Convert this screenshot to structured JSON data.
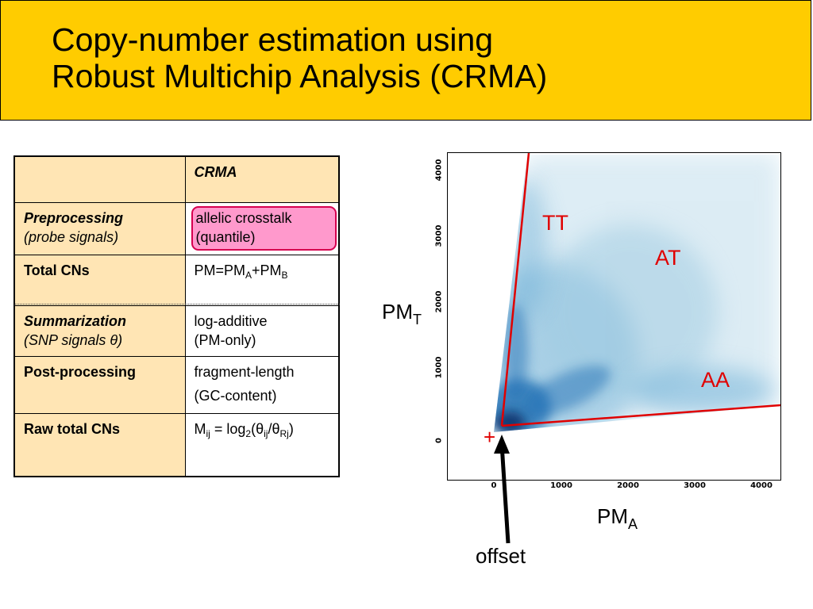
{
  "title": {
    "line1": "Copy-number estimation using",
    "line2": "Robust Multichip Analysis (CRMA)"
  },
  "table": {
    "header": "CRMA",
    "row1": {
      "label": "Preprocessing",
      "sublabel": "(probe signals)",
      "value1": "allelic crosstalk",
      "value2": "(quantile)"
    },
    "row2": {
      "label": "Total CNs",
      "value_pre": "PM=PM",
      "sub_a": "A",
      "value_mid": "+PM",
      "sub_b": "B"
    },
    "row3": {
      "label": "Summarization",
      "sublabel_pre": "(SNP signals ",
      "theta": "θ",
      "sublabel_post": ")",
      "value1": "log-additive",
      "value2": "(PM-only)"
    },
    "row4": {
      "label": "Post-processing",
      "value1": "fragment-length",
      "value2": "(GC-content)"
    },
    "row5": {
      "label": "Raw total CNs",
      "m": "M",
      "sub_ij": "ij",
      "eq": " = log",
      "sub_2": "2",
      "open": "(",
      "theta1": "θ",
      "sub_ij2": "ij",
      "slash": "/",
      "theta2": "θ",
      "sub_rj": "Rj",
      "close": ")"
    }
  },
  "plot": {
    "y_ticks": [
      "0",
      "1000",
      "2000",
      "3000",
      "4000"
    ],
    "x_ticks": [
      "0",
      "1000",
      "2000",
      "3000",
      "4000"
    ],
    "region_labels": {
      "tt": "TT",
      "at": "AT",
      "aa": "AA"
    },
    "plus": "+",
    "y_label": "PM",
    "y_label_sub": "T",
    "x_label": "PM",
    "x_label_sub": "A",
    "offset_label": "offset",
    "colors": {
      "line": "#E00000",
      "density": "#08519C",
      "plus": "#E00000"
    }
  }
}
